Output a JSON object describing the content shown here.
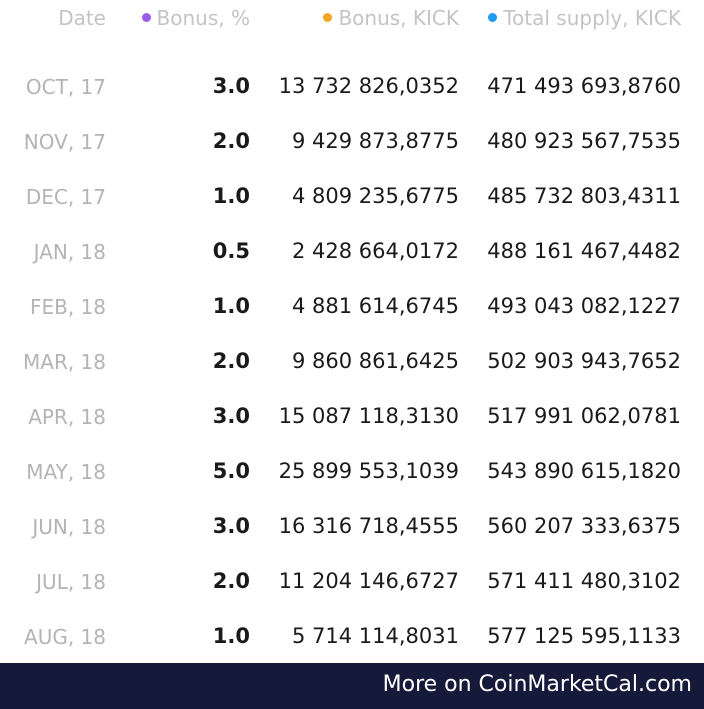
{
  "header": {
    "date": "Date",
    "bonus_pct": "Bonus, %",
    "bonus_kick": "Bonus, KICK",
    "total_supply": "Total supply, KICK",
    "bonus_pct_dot_color": "#9b5de5",
    "bonus_kick_dot_color": "#f5a623",
    "total_supply_dot_color": "#1e9bf0"
  },
  "rows": [
    {
      "date": "OCT, 17",
      "bonus": "3.0",
      "kick": "13 732 826,0352",
      "supply": "471 493 693,8760"
    },
    {
      "date": "NOV, 17",
      "bonus": "2.0",
      "kick": "9 429 873,8775",
      "supply": "480 923 567,7535"
    },
    {
      "date": "DEC, 17",
      "bonus": "1.0",
      "kick": "4 809 235,6775",
      "supply": "485 732 803,4311"
    },
    {
      "date": "JAN, 18",
      "bonus": "0.5",
      "kick": "2 428 664,0172",
      "supply": "488 161 467,4482"
    },
    {
      "date": "FEB, 18",
      "bonus": "1.0",
      "kick": "4 881 614,6745",
      "supply": "493 043 082,1227"
    },
    {
      "date": "MAR, 18",
      "bonus": "2.0",
      "kick": "9 860 861,6425",
      "supply": "502 903 943,7652"
    },
    {
      "date": "APR, 18",
      "bonus": "3.0",
      "kick": "15 087 118,3130",
      "supply": "517 991 062,0781"
    },
    {
      "date": "MAY, 18",
      "bonus": "5.0",
      "kick": "25 899 553,1039",
      "supply": "543 890 615,1820"
    },
    {
      "date": "JUN, 18",
      "bonus": "3.0",
      "kick": "16 316 718,4555",
      "supply": "560 207 333,6375"
    },
    {
      "date": "JUL, 18",
      "bonus": "2.0",
      "kick": "11 204 146,6727",
      "supply": "571 411 480,3102"
    },
    {
      "date": "AUG, 18",
      "bonus": "1.0",
      "kick": "5 714 114,8031",
      "supply": "577 125 595,1133"
    }
  ],
  "footer": {
    "link_text": "More on CoinMarketCal.com",
    "background": "#161a3a"
  }
}
